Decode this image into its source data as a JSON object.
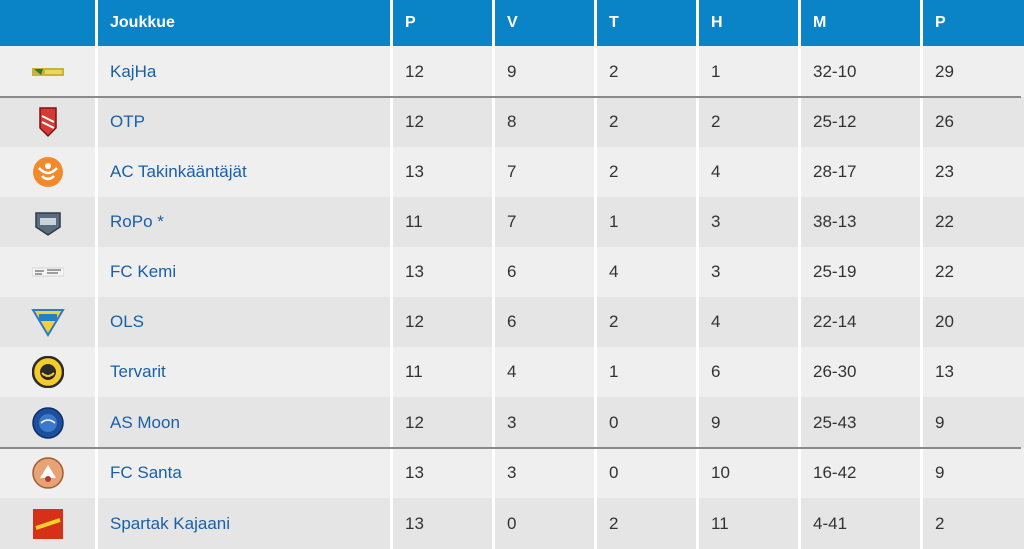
{
  "header": {
    "logo": "",
    "team": "Joukkue",
    "p": "P",
    "v": "V",
    "t": "T",
    "h": "H",
    "m": "M",
    "pts": "P"
  },
  "rows": [
    {
      "team": "KajHa",
      "p": "12",
      "v": "9",
      "t": "2",
      "h": "1",
      "m": "32-10",
      "pts": "29",
      "logo_icon": "kajha-logo-icon"
    },
    {
      "team": "OTP",
      "p": "12",
      "v": "8",
      "t": "2",
      "h": "2",
      "m": "25-12",
      "pts": "26",
      "logo_icon": "otp-logo-icon"
    },
    {
      "team": "AC Takinkääntäjät",
      "p": "13",
      "v": "7",
      "t": "2",
      "h": "4",
      "m": "28-17",
      "pts": "23",
      "logo_icon": "ac-takinkaantajat-logo-icon"
    },
    {
      "team": "RoPo *",
      "p": "11",
      "v": "7",
      "t": "1",
      "h": "3",
      "m": "38-13",
      "pts": "22",
      "logo_icon": "ropo-logo-icon"
    },
    {
      "team": "FC Kemi",
      "p": "13",
      "v": "6",
      "t": "4",
      "h": "3",
      "m": "25-19",
      "pts": "22",
      "logo_icon": "fc-kemi-logo-icon"
    },
    {
      "team": "OLS",
      "p": "12",
      "v": "6",
      "t": "2",
      "h": "4",
      "m": "22-14",
      "pts": "20",
      "logo_icon": "ols-logo-icon"
    },
    {
      "team": "Tervarit",
      "p": "11",
      "v": "4",
      "t": "1",
      "h": "6",
      "m": "26-30",
      "pts": "13",
      "logo_icon": "tervarit-logo-icon"
    },
    {
      "team": "AS Moon",
      "p": "12",
      "v": "3",
      "t": "0",
      "h": "9",
      "m": "25-43",
      "pts": "9",
      "logo_icon": "as-moon-logo-icon"
    },
    {
      "team": "FC Santa",
      "p": "13",
      "v": "3",
      "t": "0",
      "h": "10",
      "m": "16-42",
      "pts": "9",
      "logo_icon": "fc-santa-logo-icon"
    },
    {
      "team": "Spartak Kajaani",
      "p": "13",
      "v": "0",
      "t": "2",
      "h": "11",
      "m": "4-41",
      "pts": "2",
      "logo_icon": "spartak-kajaani-logo-icon"
    }
  ],
  "colors": {
    "header_bg": "#0a84c6",
    "team_link": "#1a5fa8",
    "row_light": "#efefef",
    "row_dark": "#e5e5e5"
  }
}
